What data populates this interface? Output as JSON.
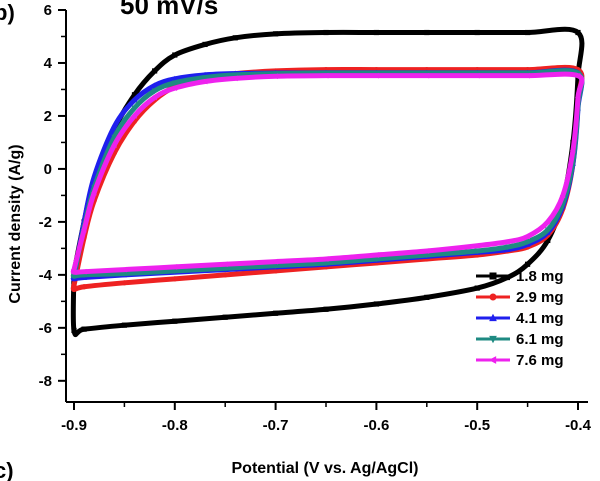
{
  "chart_data": {
    "type": "line",
    "title": "50 mV/s",
    "panel_tags": [
      "b)",
      "c)"
    ],
    "xlabel": "Potential (V vs. Ag/AgCl)",
    "ylabel": "Current density (A/g)",
    "xlim": [
      -0.9,
      -0.4
    ],
    "ylim": [
      -8.8,
      6
    ],
    "x_ticks": [
      -0.9,
      -0.8,
      -0.7,
      -0.6,
      -0.5,
      -0.4
    ],
    "x_tick_labels": [
      "-0.9",
      "-0.8",
      "-0.7",
      "-0.6",
      "-0.5",
      "-0.4"
    ],
    "y_ticks": [
      6,
      4,
      2,
      0,
      -2,
      -4,
      -6,
      -8
    ],
    "y_tick_labels": [
      "6",
      "4",
      "2",
      "0",
      "-2",
      "-4",
      "-6",
      "-8"
    ],
    "grid": false,
    "legend_position": "bottom-right",
    "series": [
      {
        "name": "1.8 mg",
        "color": "#000000",
        "marker": "square",
        "x": [
          -0.9,
          -0.89,
          -0.88,
          -0.86,
          -0.84,
          -0.82,
          -0.8,
          -0.77,
          -0.74,
          -0.7,
          -0.65,
          -0.6,
          -0.55,
          -0.5,
          -0.45,
          -0.4,
          -0.4,
          -0.405,
          -0.415,
          -0.43,
          -0.45,
          -0.47,
          -0.5,
          -0.55,
          -0.6,
          -0.65,
          -0.7,
          -0.75,
          -0.8,
          -0.85,
          -0.89,
          -0.9,
          -0.9
        ],
        "y": [
          -3.9,
          -2.0,
          -0.4,
          1.5,
          2.8,
          3.7,
          4.3,
          4.7,
          4.95,
          5.1,
          5.15,
          5.15,
          5.15,
          5.15,
          5.15,
          5.15,
          3.5,
          1.0,
          -1.2,
          -2.7,
          -3.6,
          -4.1,
          -4.5,
          -4.85,
          -5.1,
          -5.3,
          -5.45,
          -5.6,
          -5.75,
          -5.9,
          -6.05,
          -6.1,
          -3.9
        ]
      },
      {
        "name": "2.9 mg",
        "color": "#ee2222",
        "marker": "circle",
        "x": [
          -0.9,
          -0.89,
          -0.88,
          -0.86,
          -0.84,
          -0.82,
          -0.8,
          -0.77,
          -0.74,
          -0.7,
          -0.65,
          -0.6,
          -0.55,
          -0.5,
          -0.45,
          -0.4,
          -0.4,
          -0.405,
          -0.415,
          -0.43,
          -0.45,
          -0.47,
          -0.5,
          -0.55,
          -0.6,
          -0.65,
          -0.7,
          -0.75,
          -0.8,
          -0.85,
          -0.89,
          -0.9,
          -0.9
        ],
        "y": [
          -4.4,
          -2.6,
          -1.2,
          0.6,
          1.8,
          2.6,
          3.1,
          3.45,
          3.6,
          3.7,
          3.75,
          3.75,
          3.75,
          3.75,
          3.75,
          3.75,
          2.6,
          0.2,
          -1.5,
          -2.5,
          -2.95,
          -3.1,
          -3.25,
          -3.4,
          -3.55,
          -3.7,
          -3.85,
          -4.0,
          -4.15,
          -4.3,
          -4.45,
          -4.55,
          -4.4
        ]
      },
      {
        "name": "4.1 mg",
        "color": "#1f1fee",
        "marker": "triangle-up",
        "x": [
          -0.9,
          -0.89,
          -0.88,
          -0.86,
          -0.84,
          -0.82,
          -0.8,
          -0.77,
          -0.74,
          -0.7,
          -0.65,
          -0.6,
          -0.55,
          -0.5,
          -0.45,
          -0.4,
          -0.4,
          -0.405,
          -0.415,
          -0.43,
          -0.45,
          -0.47,
          -0.5,
          -0.55,
          -0.6,
          -0.65,
          -0.7,
          -0.75,
          -0.8,
          -0.85,
          -0.89,
          -0.9,
          -0.9
        ],
        "y": [
          -4.1,
          -2.0,
          -0.3,
          1.6,
          2.6,
          3.15,
          3.4,
          3.55,
          3.6,
          3.62,
          3.63,
          3.63,
          3.63,
          3.63,
          3.63,
          3.63,
          2.3,
          0.2,
          -1.4,
          -2.4,
          -2.85,
          -3.05,
          -3.15,
          -3.3,
          -3.45,
          -3.6,
          -3.7,
          -3.8,
          -3.9,
          -4.0,
          -4.1,
          -4.15,
          -4.1
        ]
      },
      {
        "name": "6.1 mg",
        "color": "#1e8a82",
        "marker": "triangle-down",
        "x": [
          -0.9,
          -0.89,
          -0.88,
          -0.86,
          -0.84,
          -0.82,
          -0.8,
          -0.77,
          -0.74,
          -0.7,
          -0.65,
          -0.6,
          -0.55,
          -0.5,
          -0.45,
          -0.4,
          -0.4,
          -0.405,
          -0.415,
          -0.43,
          -0.45,
          -0.47,
          -0.5,
          -0.55,
          -0.6,
          -0.65,
          -0.7,
          -0.75,
          -0.8,
          -0.85,
          -0.89,
          -0.9,
          -0.9
        ],
        "y": [
          -4.0,
          -2.2,
          -0.7,
          1.2,
          2.3,
          2.95,
          3.25,
          3.45,
          3.55,
          3.6,
          3.62,
          3.62,
          3.62,
          3.62,
          3.62,
          3.62,
          2.4,
          0.3,
          -1.3,
          -2.3,
          -2.75,
          -2.95,
          -3.1,
          -3.25,
          -3.4,
          -3.55,
          -3.65,
          -3.75,
          -3.85,
          -3.95,
          -4.0,
          -4.05,
          -4.0
        ]
      },
      {
        "name": "7.6 mg",
        "color": "#ee22ee",
        "marker": "triangle-left",
        "x": [
          -0.9,
          -0.89,
          -0.88,
          -0.86,
          -0.84,
          -0.82,
          -0.8,
          -0.77,
          -0.74,
          -0.7,
          -0.65,
          -0.6,
          -0.55,
          -0.5,
          -0.45,
          -0.4,
          -0.4,
          -0.405,
          -0.415,
          -0.43,
          -0.45,
          -0.47,
          -0.5,
          -0.55,
          -0.6,
          -0.65,
          -0.7,
          -0.75,
          -0.8,
          -0.85,
          -0.89,
          -0.9,
          -0.9
        ],
        "y": [
          -3.8,
          -2.3,
          -0.9,
          0.9,
          2.0,
          2.7,
          3.05,
          3.3,
          3.42,
          3.5,
          3.52,
          3.52,
          3.52,
          3.52,
          3.52,
          3.52,
          2.7,
          0.7,
          -1.0,
          -2.0,
          -2.55,
          -2.75,
          -2.9,
          -3.1,
          -3.25,
          -3.4,
          -3.5,
          -3.6,
          -3.7,
          -3.8,
          -3.88,
          -3.9,
          -3.8
        ]
      }
    ]
  }
}
